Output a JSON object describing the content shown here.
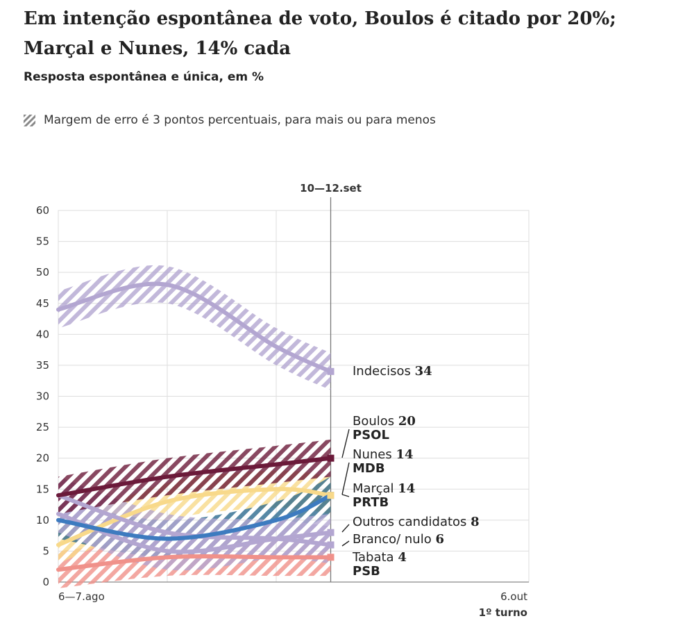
{
  "title": "Em intenção espontânea de voto, Boulos é citado por 20%; Marçal e Nunes, 14% cada",
  "subtitle": "Resposta espontânea e única, em %",
  "legend_text": "Margem de erro é 3 pontos percentuais, para mais ou para menos",
  "chart_data": {
    "type": "line",
    "title": "Em intenção espontânea de voto, Boulos é citado por 20%; Marçal e Nunes, 14% cada",
    "subtitle": "Resposta espontânea e única, em %",
    "margin_of_error": 3,
    "ylim": [
      0,
      60
    ],
    "yticks": [
      0,
      5,
      10,
      15,
      20,
      25,
      30,
      35,
      40,
      45,
      50,
      55,
      60
    ],
    "x_labels": [
      {
        "x": 0,
        "text": "6—7.ago",
        "bold": false
      },
      {
        "x": 4,
        "text": "6.out",
        "bold": false
      },
      {
        "x": 4,
        "text": "1º turno",
        "bold": true
      }
    ],
    "highlight": {
      "x": 2.5,
      "label": "10—12.set"
    },
    "x_range": [
      0,
      4
    ],
    "grid": true,
    "series": [
      {
        "name": "Indecisos",
        "value_label": "34",
        "party": "",
        "color": "#b3a6d1",
        "x": [
          0,
          1,
          2,
          2.5
        ],
        "values": [
          44,
          48,
          38,
          34
        ]
      },
      {
        "name": "Boulos",
        "value_label": "20",
        "party": "PSOL",
        "color": "#6b1a3a",
        "x": [
          0,
          1,
          2,
          2.5
        ],
        "values": [
          14,
          17,
          19,
          20
        ]
      },
      {
        "name": "Nunes",
        "value_label": "14",
        "party": "MDB",
        "color": "#3d7bbf",
        "x": [
          0,
          1,
          2,
          2.5
        ],
        "values": [
          10,
          7,
          10,
          14
        ]
      },
      {
        "name": "Marçal",
        "value_label": "14",
        "party": "PRTB",
        "color": "#f8d98a",
        "x": [
          0,
          1,
          2,
          2.5
        ],
        "values": [
          6,
          13,
          15,
          14
        ]
      },
      {
        "name": "Outros candidatos",
        "value_label": "8",
        "party": "",
        "color": "#b3a6d1",
        "x": [
          0,
          1,
          2,
          2.5
        ],
        "values": [
          11,
          5,
          7,
          8
        ]
      },
      {
        "name": "Branco/ nulo",
        "value_label": "6",
        "party": "",
        "color": "#b3a6d1",
        "x": [
          0,
          1,
          2,
          2.5
        ],
        "values": [
          14,
          8,
          7,
          6
        ]
      },
      {
        "name": "Tabata",
        "value_label": "4",
        "party": "PSB",
        "color": "#f0918a",
        "x": [
          0,
          1,
          2,
          2.5
        ],
        "values": [
          2,
          4,
          4,
          4
        ]
      }
    ],
    "band_colors": {
      "Indecisos": "#b3a6d1",
      "Boulos": "#6b1a3a",
      "Nunes": "#2d6a8f",
      "Marçal": "#f8d98a",
      "Outros candidatos": "#b3a6d1",
      "Branco/ nulo": "#b3a6d1",
      "Tabata": "#f0918a"
    },
    "colors": {
      "grid": "#dddddd",
      "axis": "#888888",
      "highlight_line": "#777777",
      "legend_swatch": "#888888"
    }
  }
}
